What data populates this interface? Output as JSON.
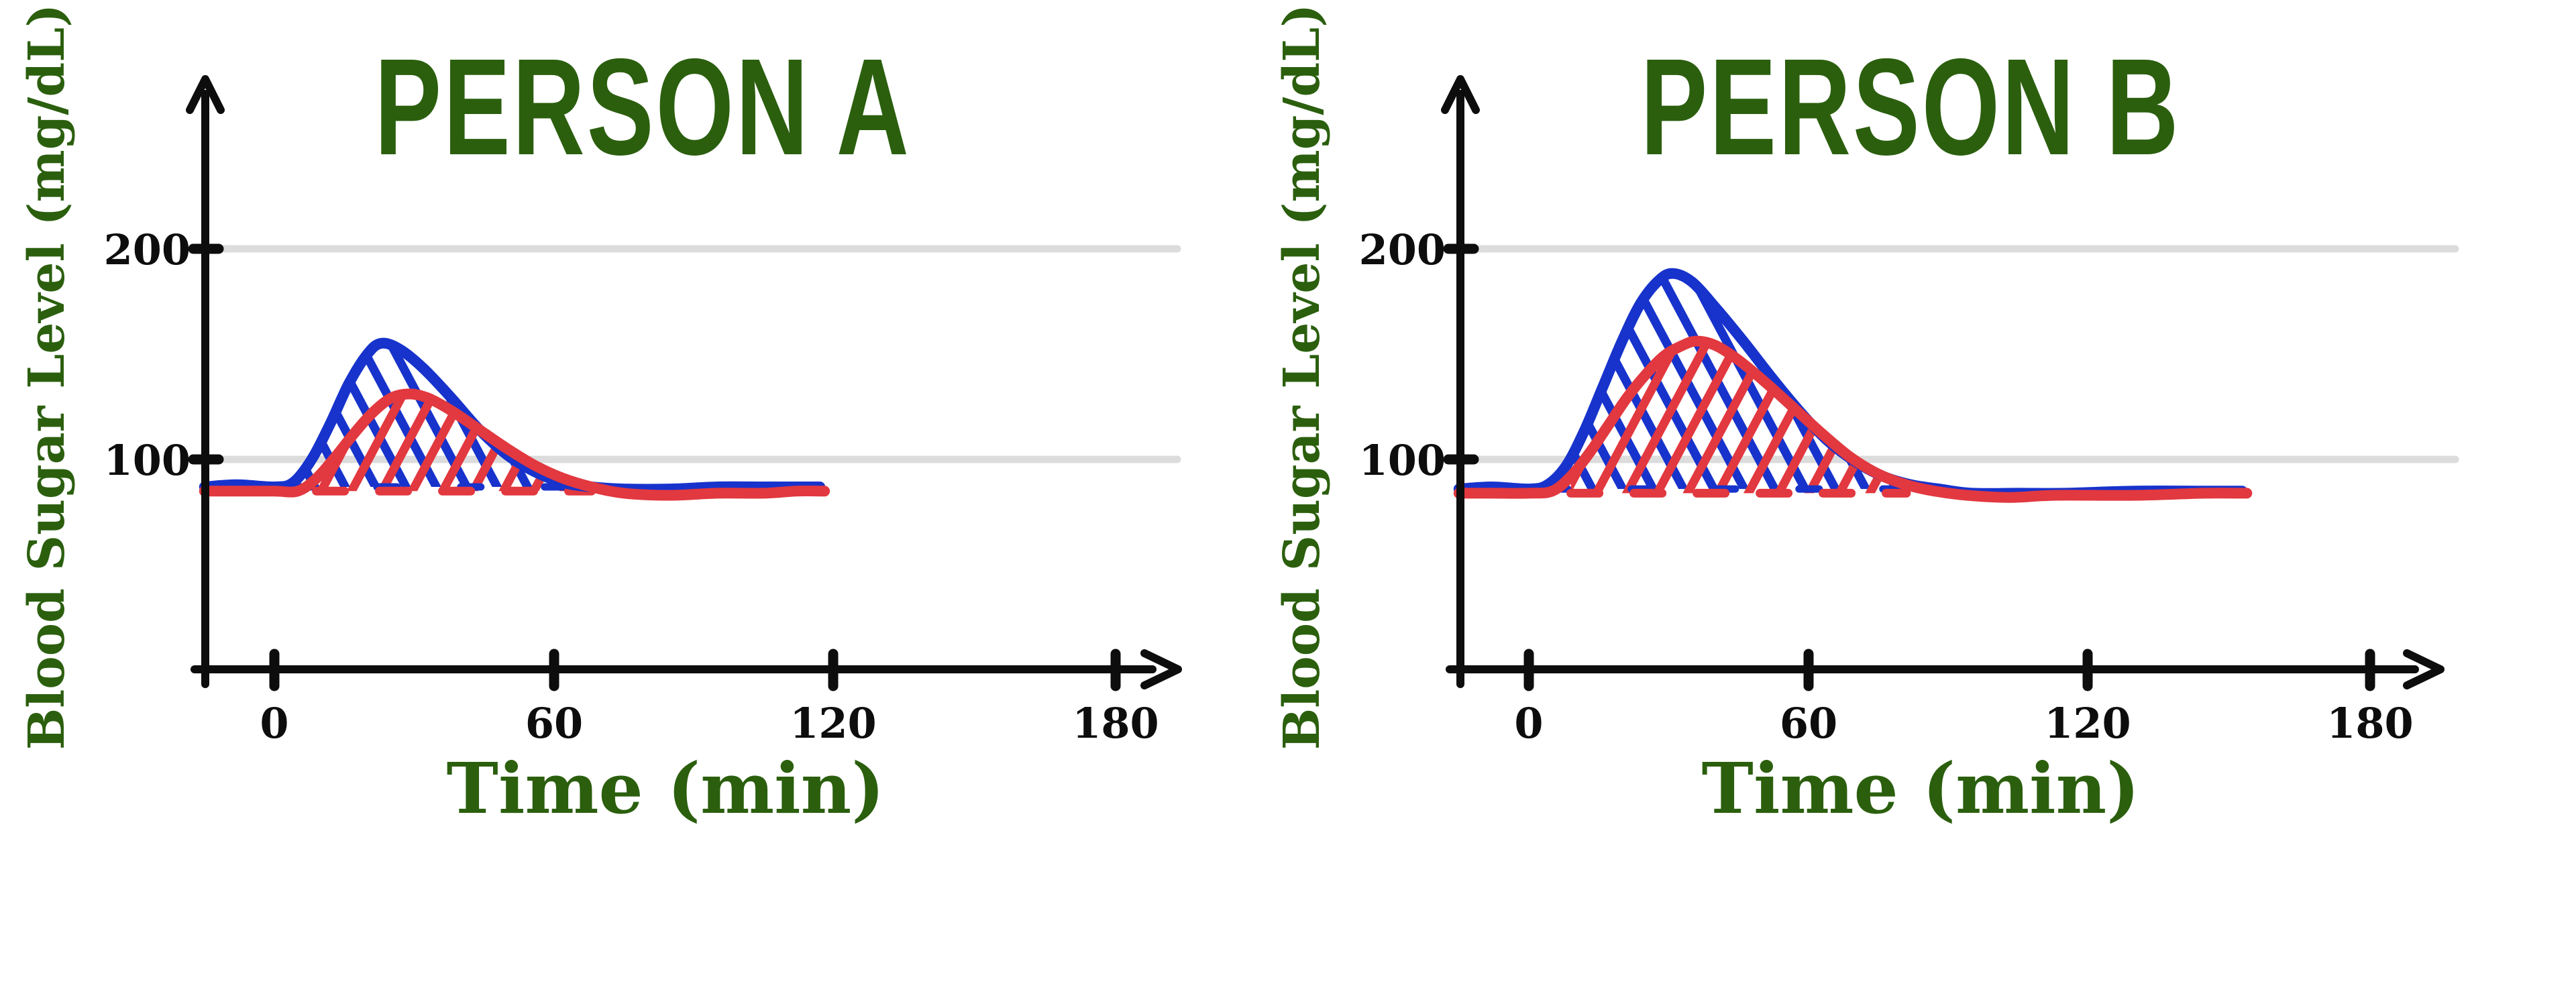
{
  "figure": {
    "description": "Two hand-drawn blood sugar response charts comparing Person A and Person B",
    "background": "#ffffff"
  },
  "colors": {
    "blue_curve": "#1733cc",
    "red_curve": "#e2383f",
    "green_text": "#2b5f0e",
    "axis_black": "#0d0d0d",
    "gridline_gray": "#dcdcdc"
  },
  "charts": [
    {
      "title": "PERSON A",
      "y_axis_label": "Blood Sugar Level (mg/dL)",
      "x_axis_label": "Time (min)",
      "y_ticks": [
        "200",
        "100"
      ],
      "x_ticks": [
        "0",
        "60",
        "120",
        "180"
      ]
    },
    {
      "title": "PERSON B",
      "y_axis_label": "Blood Sugar Level (mg/dL)",
      "x_axis_label": "Time (min)",
      "y_ticks": [
        "200",
        "100"
      ],
      "x_ticks": [
        "0",
        "60",
        "120",
        "180"
      ]
    }
  ],
  "chart_data": [
    {
      "type": "line",
      "title": "PERSON A",
      "xlabel": "Time (min)",
      "ylabel": "Blood Sugar Level (mg/dL)",
      "x_ticks": [
        0,
        60,
        120,
        180
      ],
      "y_ticks": [
        100,
        200
      ],
      "xlim": [
        -20,
        195
      ],
      "ylim": [
        0,
        280
      ],
      "grid": "horizontal gridlines at y=100 and y=200",
      "legend": "none",
      "style": "hand-drawn curves with diagonal hatching between curve and fasting baseline; baseline drawn dashed under the spike",
      "series": [
        {
          "name": "blue_curve_larger_spike",
          "color": "#1733cc",
          "hatch": "backslash",
          "baseline_value": 87,
          "peak": {
            "t": 22,
            "value": 155
          },
          "points": [
            [
              -15,
              87
            ],
            [
              -8,
              88
            ],
            [
              0,
              87
            ],
            [
              4,
              89
            ],
            [
              8,
              100
            ],
            [
              12,
              117
            ],
            [
              16,
              136
            ],
            [
              20,
              150
            ],
            [
              23,
              155
            ],
            [
              27,
              152
            ],
            [
              32,
              143
            ],
            [
              38,
              129
            ],
            [
              44,
              114
            ],
            [
              50,
              102
            ],
            [
              56,
              94
            ],
            [
              62,
              89
            ],
            [
              68,
              87
            ],
            [
              75,
              86
            ],
            [
              85,
              86
            ],
            [
              95,
              87
            ],
            [
              105,
              87
            ],
            [
              112,
              87
            ],
            [
              117,
              87
            ]
          ]
        },
        {
          "name": "red_curve_smaller_spike",
          "color": "#e2383f",
          "hatch": "slash",
          "baseline_value": 85,
          "peak": {
            "t": 27,
            "value": 131
          },
          "points": [
            [
              -15,
              85
            ],
            [
              -8,
              85
            ],
            [
              0,
              85
            ],
            [
              5,
              85
            ],
            [
              9,
              91
            ],
            [
              13,
              101
            ],
            [
              17,
              112
            ],
            [
              21,
              122
            ],
            [
              25,
              129
            ],
            [
              29,
              131
            ],
            [
              33,
              129
            ],
            [
              38,
              123
            ],
            [
              44,
              114
            ],
            [
              50,
              105
            ],
            [
              56,
              97
            ],
            [
              62,
              91
            ],
            [
              68,
              87
            ],
            [
              75,
              84
            ],
            [
              85,
              83
            ],
            [
              95,
              84
            ],
            [
              105,
              84
            ],
            [
              112,
              85
            ],
            [
              118,
              85
            ]
          ]
        }
      ]
    },
    {
      "type": "line",
      "title": "PERSON B",
      "xlabel": "Time (min)",
      "ylabel": "Blood Sugar Level (mg/dL)",
      "x_ticks": [
        0,
        60,
        120,
        180
      ],
      "y_ticks": [
        100,
        200
      ],
      "xlim": [
        -20,
        195
      ],
      "ylim": [
        0,
        280
      ],
      "grid": "horizontal gridlines at y=100 and y=200",
      "legend": "none",
      "style": "hand-drawn curves with diagonal hatching between curve and fasting baseline; baseline drawn dashed under the spike",
      "series": [
        {
          "name": "blue_curve_larger_spike",
          "color": "#1733cc",
          "hatch": "backslash",
          "baseline_value": 86,
          "peak": {
            "t": 31,
            "value": 188
          },
          "points": [
            [
              -15,
              86
            ],
            [
              -8,
              87
            ],
            [
              0,
              86
            ],
            [
              4,
              88
            ],
            [
              8,
              97
            ],
            [
              12,
              114
            ],
            [
              16,
              135
            ],
            [
              20,
              156
            ],
            [
              24,
              174
            ],
            [
              28,
              185
            ],
            [
              31,
              188
            ],
            [
              35,
              184
            ],
            [
              40,
              172
            ],
            [
              46,
              156
            ],
            [
              52,
              139
            ],
            [
              58,
              123
            ],
            [
              64,
              109
            ],
            [
              70,
              99
            ],
            [
              76,
              92
            ],
            [
              82,
              88
            ],
            [
              88,
              86
            ],
            [
              95,
              84
            ],
            [
              105,
              84
            ],
            [
              115,
              84
            ],
            [
              130,
              85
            ],
            [
              145,
              85
            ],
            [
              153,
              85
            ]
          ]
        },
        {
          "name": "red_curve_smaller_spike",
          "color": "#e2383f",
          "hatch": "slash",
          "baseline_value": 84,
          "peak": {
            "t": 36,
            "value": 156
          },
          "points": [
            [
              -15,
              84
            ],
            [
              -8,
              84
            ],
            [
              0,
              84
            ],
            [
              5,
              85
            ],
            [
              9,
              92
            ],
            [
              13,
              103
            ],
            [
              17,
              116
            ],
            [
              21,
              129
            ],
            [
              25,
              140
            ],
            [
              29,
              149
            ],
            [
              33,
              154
            ],
            [
              36,
              156
            ],
            [
              40,
              154
            ],
            [
              45,
              147
            ],
            [
              51,
              136
            ],
            [
              57,
              124
            ],
            [
              63,
              112
            ],
            [
              69,
              101
            ],
            [
              75,
              93
            ],
            [
              81,
              88
            ],
            [
              87,
              85
            ],
            [
              94,
              83
            ],
            [
              103,
              82
            ],
            [
              113,
              83
            ],
            [
              130,
              83
            ],
            [
              145,
              84
            ],
            [
              154,
              84
            ]
          ]
        }
      ]
    }
  ]
}
